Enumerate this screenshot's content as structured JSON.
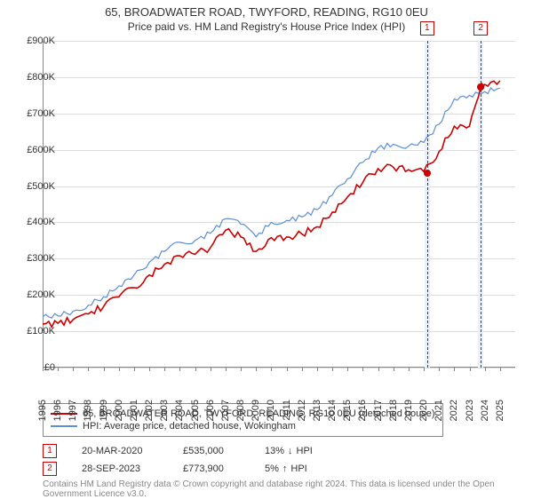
{
  "title": "65, BROADWATER ROAD, TWYFORD, READING, RG10 0EU",
  "subtitle": "Price paid vs. HM Land Registry's House Price Index (HPI)",
  "colors": {
    "series_price": "#cc0000",
    "series_hpi": "#5b8fd6",
    "grid": "#dddddd",
    "axis": "#888888",
    "background": "#ffffff",
    "text": "#333333",
    "band": "#eaf0fa",
    "attribution": "#888888"
  },
  "chart": {
    "type": "line",
    "xlim": [
      1995,
      2026
    ],
    "ylim": [
      0,
      900000
    ],
    "ytick_step": 100000,
    "x_ticks": [
      1995,
      1996,
      1997,
      1998,
      1999,
      2000,
      2001,
      2002,
      2003,
      2004,
      2005,
      2006,
      2007,
      2008,
      2009,
      2010,
      2011,
      2012,
      2013,
      2014,
      2015,
      2016,
      2017,
      2018,
      2019,
      2020,
      2021,
      2022,
      2023,
      2024,
      2025
    ],
    "y_tick_labels": [
      "£0",
      "£100K",
      "£200K",
      "£300K",
      "£400K",
      "£500K",
      "£600K",
      "£700K",
      "£800K",
      "£900K"
    ],
    "line_width_price": 1.6,
    "line_width_hpi": 1.2,
    "series": {
      "hpi": [
        [
          1995,
          140000
        ],
        [
          1996,
          142000
        ],
        [
          1997,
          155000
        ],
        [
          1998,
          172000
        ],
        [
          1999,
          195000
        ],
        [
          2000,
          225000
        ],
        [
          2001,
          255000
        ],
        [
          2002,
          290000
        ],
        [
          2003,
          320000
        ],
        [
          2004,
          345000
        ],
        [
          2005,
          350000
        ],
        [
          2006,
          370000
        ],
        [
          2007,
          410000
        ],
        [
          2008,
          395000
        ],
        [
          2009,
          360000
        ],
        [
          2010,
          400000
        ],
        [
          2011,
          405000
        ],
        [
          2012,
          415000
        ],
        [
          2013,
          435000
        ],
        [
          2014,
          475000
        ],
        [
          2015,
          520000
        ],
        [
          2016,
          565000
        ],
        [
          2017,
          605000
        ],
        [
          2018,
          615000
        ],
        [
          2019,
          610000
        ],
        [
          2020,
          620000
        ],
        [
          2021,
          670000
        ],
        [
          2022,
          740000
        ],
        [
          2023,
          750000
        ],
        [
          2024,
          760000
        ],
        [
          2025,
          770000
        ]
      ],
      "price": [
        [
          1995,
          120000
        ],
        [
          1996,
          122000
        ],
        [
          1997,
          132000
        ],
        [
          1998,
          148000
        ],
        [
          1999,
          168000
        ],
        [
          2000,
          195000
        ],
        [
          2001,
          220000
        ],
        [
          2002,
          255000
        ],
        [
          2003,
          285000
        ],
        [
          2004,
          308000
        ],
        [
          2005,
          312000
        ],
        [
          2006,
          330000
        ],
        [
          2007,
          378000
        ],
        [
          2008,
          360000
        ],
        [
          2009,
          320000
        ],
        [
          2010,
          358000
        ],
        [
          2011,
          360000
        ],
        [
          2012,
          368000
        ],
        [
          2013,
          388000
        ],
        [
          2014,
          428000
        ],
        [
          2015,
          470000
        ],
        [
          2016,
          510000
        ],
        [
          2017,
          548000
        ],
        [
          2018,
          552000
        ],
        [
          2019,
          545000
        ],
        [
          2020,
          540000
        ],
        [
          2021,
          595000
        ],
        [
          2022,
          665000
        ],
        [
          2023,
          665000
        ],
        [
          2023.74,
          773900
        ],
        [
          2024,
          780000
        ],
        [
          2025,
          790000
        ]
      ]
    },
    "markers": [
      {
        "id": "1",
        "x": 2020.22,
        "price_y": 535000,
        "band_start": 2020.05,
        "band_end": 2020.4
      },
      {
        "id": "2",
        "x": 2023.74,
        "price_y": 773900,
        "band_start": 2023.57,
        "band_end": 2023.92
      }
    ]
  },
  "legend": {
    "items": [
      {
        "color": "#cc0000",
        "label": "65, BROADWATER ROAD, TWYFORD, READING, RG10 0EU (detached house)"
      },
      {
        "color": "#5b8fd6",
        "label": "HPI: Average price, detached house, Wokingham"
      }
    ]
  },
  "transactions": [
    {
      "id": "1",
      "date": "20-MAR-2020",
      "price": "£535,000",
      "delta_pct": "13%",
      "delta_dir": "down",
      "delta_vs": "HPI"
    },
    {
      "id": "2",
      "date": "28-SEP-2023",
      "price": "£773,900",
      "delta_pct": "5%",
      "delta_dir": "up",
      "delta_vs": "HPI"
    }
  ],
  "attribution": "Contains HM Land Registry data © Crown copyright and database right 2024. This data is licensed under the Open Government Licence v3.0."
}
